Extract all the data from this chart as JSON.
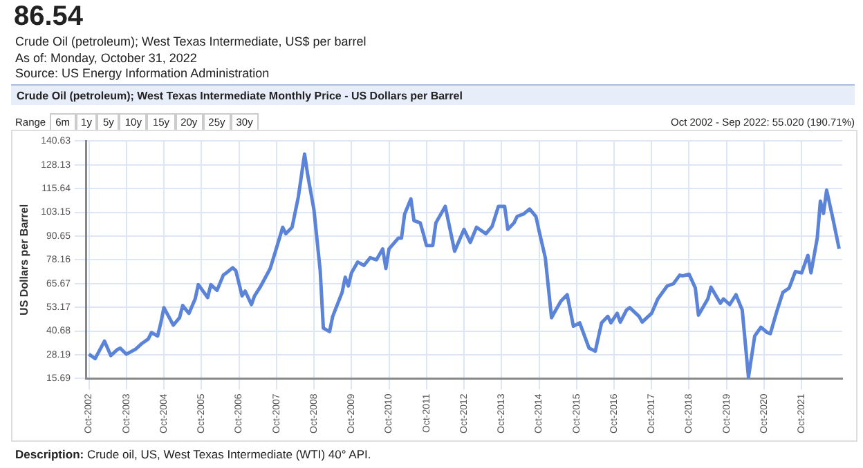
{
  "chart_data": {
    "type": "line",
    "title": "Crude Oil (petroleum); West Texas Intermediate Monthly Price - US Dollars per Barrel",
    "subtitle": "Oct 2002 - Sep 2022: 55.020 (190.71%)",
    "ylabel": "US Dollars per Barrel",
    "annotations": [
      "86.54",
      "Crude Oil (petroleum); West Texas Intermediate, US$ per barrel",
      "As of: Monday, October 31, 2022",
      "Source: US Energy Information Administration",
      "Range",
      "6m",
      "1y",
      "5y",
      "10y",
      "15y",
      "20y",
      "25y",
      "30y",
      "Description: Crude oil, US, West Texas Intermediate (WTI) 40° API."
    ],
    "x": [
      "2002-10",
      "2002-12",
      "2003-03",
      "2003-05",
      "2003-07",
      "2003-08",
      "2003-10",
      "2004-01",
      "2004-03",
      "2004-05",
      "2004-06",
      "2004-08",
      "2004-09",
      "2004-10",
      "2005-01",
      "2005-03",
      "2005-04",
      "2005-06",
      "2005-08",
      "2005-09",
      "2005-12",
      "2006-01",
      "2006-03",
      "2006-05",
      "2006-06",
      "2006-08",
      "2006-09",
      "2006-11",
      "2006-12",
      "2007-02",
      "2007-03",
      "2007-05",
      "2007-08",
      "2007-10",
      "2007-12",
      "2008-01",
      "2008-03",
      "2008-05",
      "2008-07",
      "2008-08",
      "2008-10",
      "2008-12",
      "2009-01",
      "2009-03",
      "2009-04",
      "2009-07",
      "2009-08",
      "2009-09",
      "2009-10",
      "2009-12",
      "2010-02",
      "2010-04",
      "2010-06",
      "2010-08",
      "2010-09",
      "2010-10",
      "2011-01",
      "2011-02",
      "2011-03",
      "2011-05",
      "2011-06",
      "2011-08",
      "2011-09",
      "2011-10",
      "2011-12",
      "2012-01",
      "2012-04",
      "2012-07",
      "2012-10",
      "2012-12",
      "2013-02",
      "2013-05",
      "2013-07",
      "2013-09",
      "2013-11",
      "2013-12",
      "2014-02",
      "2014-03",
      "2014-05",
      "2014-07",
      "2014-09",
      "2014-10",
      "2014-12",
      "2015-02",
      "2015-03",
      "2015-05",
      "2015-07",
      "2015-09",
      "2015-11",
      "2016-02",
      "2016-04",
      "2016-06",
      "2016-08",
      "2016-09",
      "2016-11",
      "2016-12",
      "2017-02",
      "2017-03",
      "2017-06",
      "2017-07",
      "2017-10",
      "2017-12",
      "2018-03",
      "2018-05",
      "2018-07",
      "2018-08",
      "2018-10",
      "2018-12",
      "2019-01",
      "2019-04",
      "2019-05",
      "2019-08",
      "2019-09",
      "2019-11",
      "2020-01",
      "2020-03",
      "2020-05",
      "2020-07",
      "2020-09",
      "2020-11",
      "2020-12",
      "2021-02",
      "2021-04",
      "2021-06",
      "2021-08",
      "2021-10",
      "2021-12",
      "2022-01",
      "2022-03",
      "2022-04",
      "2022-05",
      "2022-06",
      "2022-08",
      "2022-10"
    ],
    "series": [
      {
        "color": "#5b84d9",
        "values": [
          28.5,
          26.2,
          35.4,
          27.8,
          30.8,
          31.7,
          28.5,
          31.2,
          34.2,
          36.5,
          39.9,
          38.1,
          44.9,
          53.0,
          43.8,
          47.7,
          54.1,
          50.0,
          57.6,
          65.1,
          58.3,
          65.1,
          62.1,
          70.1,
          71.3,
          74.0,
          72.5,
          59.2,
          61.7,
          54.6,
          59.2,
          64.4,
          73.6,
          84.3,
          95.3,
          91.9,
          95.3,
          111.3,
          133.8,
          122.8,
          104.5,
          72.4,
          42.2,
          40.4,
          48.4,
          61.0,
          69.0,
          64.4,
          71.3,
          77.0,
          75.2,
          79.3,
          78.2,
          83.9,
          73.6,
          83.9,
          89.6,
          89.6,
          102.2,
          110.2,
          98.8,
          97.6,
          91.9,
          85.7,
          85.7,
          97.6,
          106.3,
          82.7,
          94.2,
          87.3,
          95.3,
          91.9,
          95.8,
          106.3,
          106.3,
          94.2,
          97.6,
          101.0,
          102.2,
          104.9,
          101.0,
          93.5,
          79.3,
          47.7,
          50.7,
          56.4,
          59.8,
          43.2,
          45.0,
          31.7,
          30.1,
          45.0,
          48.4,
          45.0,
          50.0,
          45.4,
          51.8,
          53.0,
          48.4,
          45.4,
          50.0,
          57.6,
          64.4,
          65.6,
          70.1,
          69.7,
          70.6,
          63.3,
          49.1,
          57.6,
          63.8,
          55.3,
          57.6,
          54.6,
          59.8,
          51.8,
          16.4,
          38.1,
          42.7,
          39.9,
          39.3,
          50.7,
          61.0,
          63.3,
          72.0,
          71.3,
          80.5,
          71.3,
          89.6,
          109.0,
          102.6,
          114.8,
          99.9,
          83.9
        ]
      }
    ],
    "xlim": [
      "2002-09",
      "2022-11"
    ],
    "xticks": [
      {
        "value": "2002-10",
        "label": "Oct-2002"
      },
      {
        "value": "2003-10",
        "label": "Oct-2003"
      },
      {
        "value": "2004-10",
        "label": "Oct-2004"
      },
      {
        "value": "2005-10",
        "label": "Oct-2005"
      },
      {
        "value": "2006-10",
        "label": "Oct-2006"
      },
      {
        "value": "2007-10",
        "label": "Oct-2007"
      },
      {
        "value": "2008-10",
        "label": "Oct-2008"
      },
      {
        "value": "2009-10",
        "label": "Oct-2009"
      },
      {
        "value": "2010-10",
        "label": "Oct-2010"
      },
      {
        "value": "2011-10",
        "label": "Oct-2011"
      },
      {
        "value": "2012-10",
        "label": "Oct-2012"
      },
      {
        "value": "2013-10",
        "label": "Oct-2013"
      },
      {
        "value": "2014-10",
        "label": "Oct-2014"
      },
      {
        "value": "2015-10",
        "label": "Oct-2015"
      },
      {
        "value": "2016-10",
        "label": "Oct-2016"
      },
      {
        "value": "2017-10",
        "label": "Oct-2017"
      },
      {
        "value": "2018-10",
        "label": "Oct-2018"
      },
      {
        "value": "2019-10",
        "label": "Oct-2019"
      },
      {
        "value": "2020-10",
        "label": "Oct-2020"
      },
      {
        "value": "2021-10",
        "label": "Oct-2021"
      }
    ],
    "ylim": [
      15.69,
      140.63
    ],
    "yticks": [
      15.69,
      28.19,
      40.68,
      53.17,
      65.67,
      78.16,
      90.65,
      103.15,
      115.64,
      128.13,
      140.63
    ],
    "grid": true,
    "legend": false,
    "marker": "none",
    "line_style": "solid"
  }
}
